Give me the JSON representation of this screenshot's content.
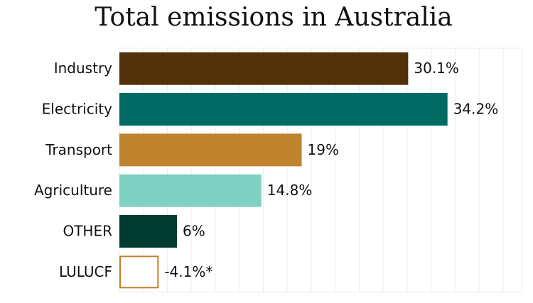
{
  "chart_data": {
    "type": "hbar",
    "title": "Total emissions in Australia",
    "categories": [
      "Industry",
      "Electricity",
      "Transport",
      "Agriculture",
      "OTHER",
      "LULUCF"
    ],
    "values": [
      30.1,
      34.2,
      19,
      14.8,
      6,
      -4.1
    ],
    "value_labels": [
      "30.1%",
      "34.2%",
      "19%",
      "14.8%",
      "6%",
      "-4.1%*"
    ],
    "colors": [
      "#52300a",
      "#006a64",
      "#bf822d",
      "#7fd1c3",
      "#003b30",
      "#bf822d"
    ],
    "xlim": [
      0,
      42
    ],
    "xticks": [
      0,
      2.5,
      5,
      7.5,
      10,
      12.5,
      15,
      17.5,
      20,
      22.5,
      25,
      27.5,
      30,
      32.5,
      35,
      37.5,
      40
    ],
    "grid": true
  }
}
